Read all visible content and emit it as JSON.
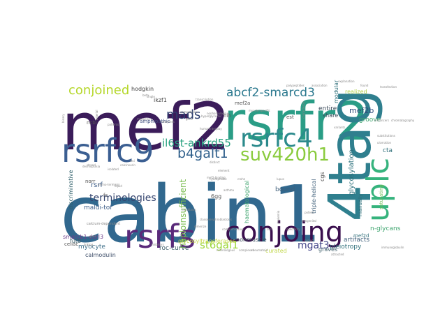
{
  "words": [
    {
      "text": "cabin1",
      "color": "#31688e"
    },
    {
      "text": "mef2",
      "color": "#3b1c5a"
    },
    {
      "text": "rsrfr2",
      "color": "#2a9d86"
    },
    {
      "text": "4tag",
      "color": "#2f7f8e"
    },
    {
      "text": "conjoing",
      "color": "#3a0f4e"
    },
    {
      "text": "rsrfs",
      "color": "#5a2a7a"
    },
    {
      "text": "rsrfc9",
      "color": "#3b5f92"
    },
    {
      "text": "uplc",
      "color": "#36b37d"
    },
    {
      "text": "rsrfc4",
      "color": "#2b8a8c"
    },
    {
      "text": "suv420h1",
      "color": "#8acb3e"
    },
    {
      "text": "conjoined",
      "color": "#b5d72a"
    },
    {
      "text": "abcf2-smarcd3",
      "color": "#2a788e"
    },
    {
      "text": "mads",
      "color": "#2f3f6f"
    },
    {
      "text": "b4galt1",
      "color": "#2f5f8b"
    },
    {
      "text": "il6st-ankrd55",
      "color": "#26a17f"
    },
    {
      "text": "terminologies",
      "color": "#35456f"
    },
    {
      "text": "mgat3",
      "color": "#414487"
    },
    {
      "text": "st6gal1",
      "color": "#9dd63a"
    },
    {
      "text": "haploinsufficient",
      "color": "#7bbd52"
    },
    {
      "text": "mef2b",
      "color": "#2e4a7a"
    },
    {
      "text": "glycosylation",
      "color": "#2a6f7a"
    },
    {
      "text": "hodgkin",
      "color": "#444444"
    },
    {
      "text": "ikzf1",
      "color": "#444444"
    },
    {
      "text": "amphipathic",
      "color": "#3f4f7f"
    },
    {
      "text": "rsrf",
      "color": "#3f5f8a"
    },
    {
      "text": "fc",
      "color": "#555555"
    },
    {
      "text": "maldi-tof",
      "color": "#3f5f8a"
    },
    {
      "text": "discriminative",
      "color": "#2f5f6a"
    },
    {
      "text": "norr",
      "color": "#555555"
    },
    {
      "text": "myocyte",
      "color": "#3f6f8a"
    },
    {
      "text": "calmodulin",
      "color": "#3f4f6a"
    },
    {
      "text": "roc-curve",
      "color": "#3f5f6a"
    },
    {
      "text": "glycosyltransferases",
      "color": "#c7d94a"
    },
    {
      "text": "nonmuscle",
      "color": "#3a4a5a"
    },
    {
      "text": "bound",
      "color": "#3f5f7a"
    },
    {
      "text": "curated",
      "color": "#c2d84c"
    },
    {
      "text": "graves",
      "color": "#3f5f6a"
    },
    {
      "text": "pleiotropy",
      "color": "#2f6f7a"
    },
    {
      "text": "artifacts",
      "color": "#3f5f7a"
    },
    {
      "text": "n-glycans",
      "color": "#3fa56f"
    },
    {
      "text": "groove",
      "color": "#3fa56f"
    },
    {
      "text": "cta",
      "color": "#2f6f7a"
    },
    {
      "text": "entire",
      "color": "#3a4a5a"
    },
    {
      "text": "share",
      "color": "#3a4a5a"
    },
    {
      "text": "realized",
      "color": "#b0cf4a"
    },
    {
      "text": "fut8",
      "color": "#3f5f6a"
    },
    {
      "text": "smarcb1-derl3",
      "color": "#6f3f8a"
    },
    {
      "text": "celiac",
      "color": "#555555"
    },
    {
      "text": "6gg",
      "color": "#555555"
    },
    {
      "text": "nih",
      "color": "#555555"
    },
    {
      "text": "ncbi",
      "color": "#555555"
    },
    {
      "text": "cgs",
      "color": "#555555"
    },
    {
      "text": "est",
      "color": "#555555"
    },
    {
      "text": "mef2a",
      "color": "#555555"
    },
    {
      "text": "modular",
      "color": "#2f6f7a"
    },
    {
      "text": "triple-helical",
      "color": "#3f5f7a"
    },
    {
      "text": "haematological",
      "color": "#3fa56f"
    },
    {
      "text": "manually",
      "color": "#2f6f7a"
    },
    {
      "text": "saturating",
      "color": "#6fbf5a"
    },
    {
      "text": "mef2d",
      "color": "#2f6f7a"
    },
    {
      "text": "hydrophobic",
      "color": "#888888"
    },
    {
      "text": "calcium-dependent",
      "color": "#888888"
    },
    {
      "text": "amino-terminal",
      "color": "#888888"
    },
    {
      "text": "chromatography",
      "color": "#888888"
    },
    {
      "text": "leukemia",
      "color": "#888888"
    },
    {
      "text": "complexes",
      "color": "#888888"
    },
    {
      "text": "rheumatoid",
      "color": "#888888"
    },
    {
      "text": "heterologous",
      "color": "#888888"
    },
    {
      "text": "specificity",
      "color": "#888888"
    },
    {
      "text": "desmoplasia",
      "color": "#888888"
    },
    {
      "text": "explanation",
      "color": "#888888"
    },
    {
      "text": "transfection",
      "color": "#888888"
    },
    {
      "text": "immunoglobulin",
      "color": "#888888"
    },
    {
      "text": "attracted",
      "color": "#888888"
    },
    {
      "text": "muscle-specific",
      "color": "#888888"
    },
    {
      "text": "competition",
      "color": "#888888"
    },
    {
      "text": "interplay",
      "color": "#888888"
    },
    {
      "text": "substitutions",
      "color": "#888888"
    },
    {
      "text": "ulceration",
      "color": "#888888"
    },
    {
      "text": "enhancers",
      "color": "#888888"
    },
    {
      "text": "mef2-binding",
      "color": "#888888"
    },
    {
      "text": "element",
      "color": "#888888"
    },
    {
      "text": "classes",
      "color": "#888888"
    },
    {
      "text": "erythroblastosis",
      "color": "#888888"
    },
    {
      "text": "dimerize",
      "color": "#888888"
    },
    {
      "text": "myoblasts",
      "color": "#888888"
    },
    {
      "text": "lupus",
      "color": "#888888"
    },
    {
      "text": "asthma",
      "color": "#888888"
    },
    {
      "text": "comprehensive",
      "color": "#888888"
    },
    {
      "text": "project",
      "color": "#888888"
    },
    {
      "text": "found",
      "color": "#888888"
    },
    {
      "text": "binary",
      "color": "#888888"
    },
    {
      "text": "strand",
      "color": "#888888"
    },
    {
      "text": "liquid",
      "color": "#888888"
    },
    {
      "text": "beta",
      "color": "#888888"
    },
    {
      "text": "hyperglycemic",
      "color": "#888888"
    },
    {
      "text": "calcineurin",
      "color": "#888888"
    },
    {
      "text": "myogenic",
      "color": "#888888"
    },
    {
      "text": "inhibitors",
      "color": "#888888"
    },
    {
      "text": "crohn",
      "color": "#888888"
    },
    {
      "text": "distinct",
      "color": "#888888"
    },
    {
      "text": "arterial",
      "color": "#888888"
    },
    {
      "text": "nonhomologous",
      "color": "#888888"
    },
    {
      "text": "polypeptides",
      "color": "#888888"
    },
    {
      "text": "association",
      "color": "#888888"
    },
    {
      "text": "characterize",
      "color": "#888888"
    },
    {
      "text": "congenital",
      "color": "#888888"
    },
    {
      "text": "patients",
      "color": "#888888"
    },
    {
      "text": "isolated",
      "color": "#888888"
    },
    {
      "text": "enzymes",
      "color": "#888888"
    },
    {
      "text": "gene",
      "color": "#888888"
    },
    {
      "text": "linking",
      "color": "#888888"
    },
    {
      "text": "goes",
      "color": "#888888"
    },
    {
      "text": "single",
      "color": "#888888"
    },
    {
      "text": "transcription",
      "color": "#888888"
    },
    {
      "text": "cell",
      "color": "#888888"
    },
    {
      "text": "potent",
      "color": "#888888"
    },
    {
      "text": "variants",
      "color": "#888888"
    },
    {
      "text": "loci",
      "color": "#888888"
    },
    {
      "text": "human",
      "color": "#888888"
    }
  ]
}
